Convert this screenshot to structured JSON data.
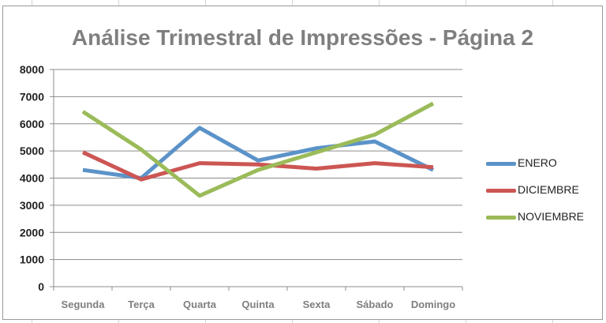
{
  "chart_data": {
    "type": "line",
    "title": "Análise Trimestral de Impressões - Página 2",
    "xlabel": "",
    "ylabel": "",
    "categories": [
      "Segunda",
      "Terça",
      "Quarta",
      "Quinta",
      "Sexta",
      "Sábado",
      "Domingo"
    ],
    "ylim": [
      0,
      8000
    ],
    "yticks": [
      "0",
      "1000",
      "2000",
      "3000",
      "4000",
      "5000",
      "6000",
      "7000",
      "8000"
    ],
    "grid": true,
    "legend_position": "right",
    "series": [
      {
        "name": "ENERO",
        "color": "#5b93c9",
        "values": [
          4300,
          4000,
          5850,
          4650,
          5100,
          5350,
          4300
        ]
      },
      {
        "name": "DICIEMBRE",
        "color": "#cc5653",
        "values": [
          4950,
          3950,
          4550,
          4500,
          4350,
          4550,
          4400
        ]
      },
      {
        "name": "NOVIEMBRE",
        "color": "#9bbb59",
        "values": [
          6450,
          5050,
          3350,
          4300,
          4950,
          5600,
          6750
        ]
      }
    ]
  }
}
